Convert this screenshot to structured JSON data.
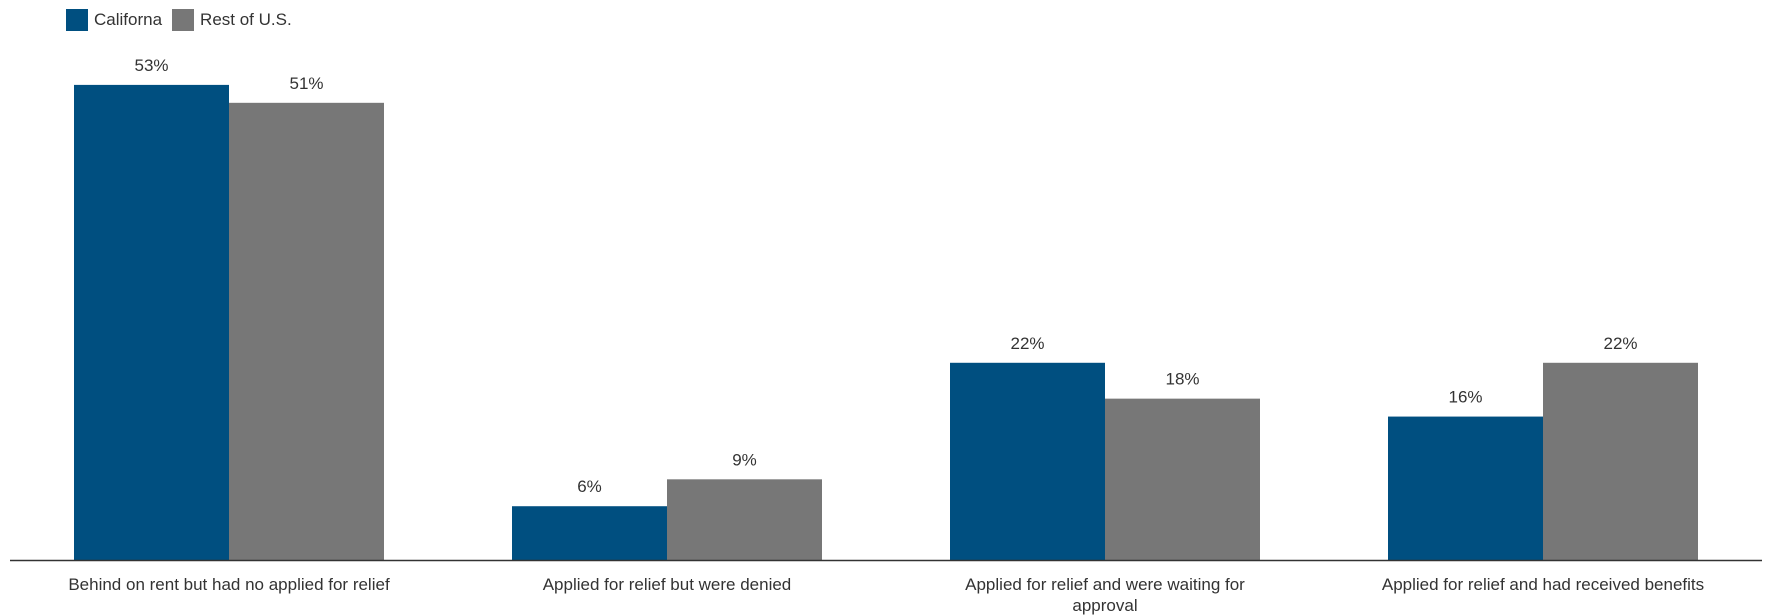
{
  "chart_data": {
    "type": "bar",
    "title": "",
    "xlabel": "",
    "ylabel": "",
    "ylim": [
      0,
      56
    ],
    "grid": false,
    "legend_position": "top-left",
    "categories": [
      "Behind on rent but had no applied for relief",
      "Applied for relief but were denied",
      "Applied for relief and were waiting for approval",
      "Applied for relief and had received benefits"
    ],
    "series": [
      {
        "name": "Californa",
        "color": "#004f80",
        "values": [
          53,
          6,
          22,
          16
        ],
        "labels": [
          "53%",
          "6%",
          "22%",
          "16%"
        ]
      },
      {
        "name": "Rest of U.S.",
        "color": "#777777",
        "values": [
          51,
          9,
          18,
          22
        ],
        "labels": [
          "51%",
          "9%",
          "18%",
          "22%"
        ]
      }
    ]
  }
}
